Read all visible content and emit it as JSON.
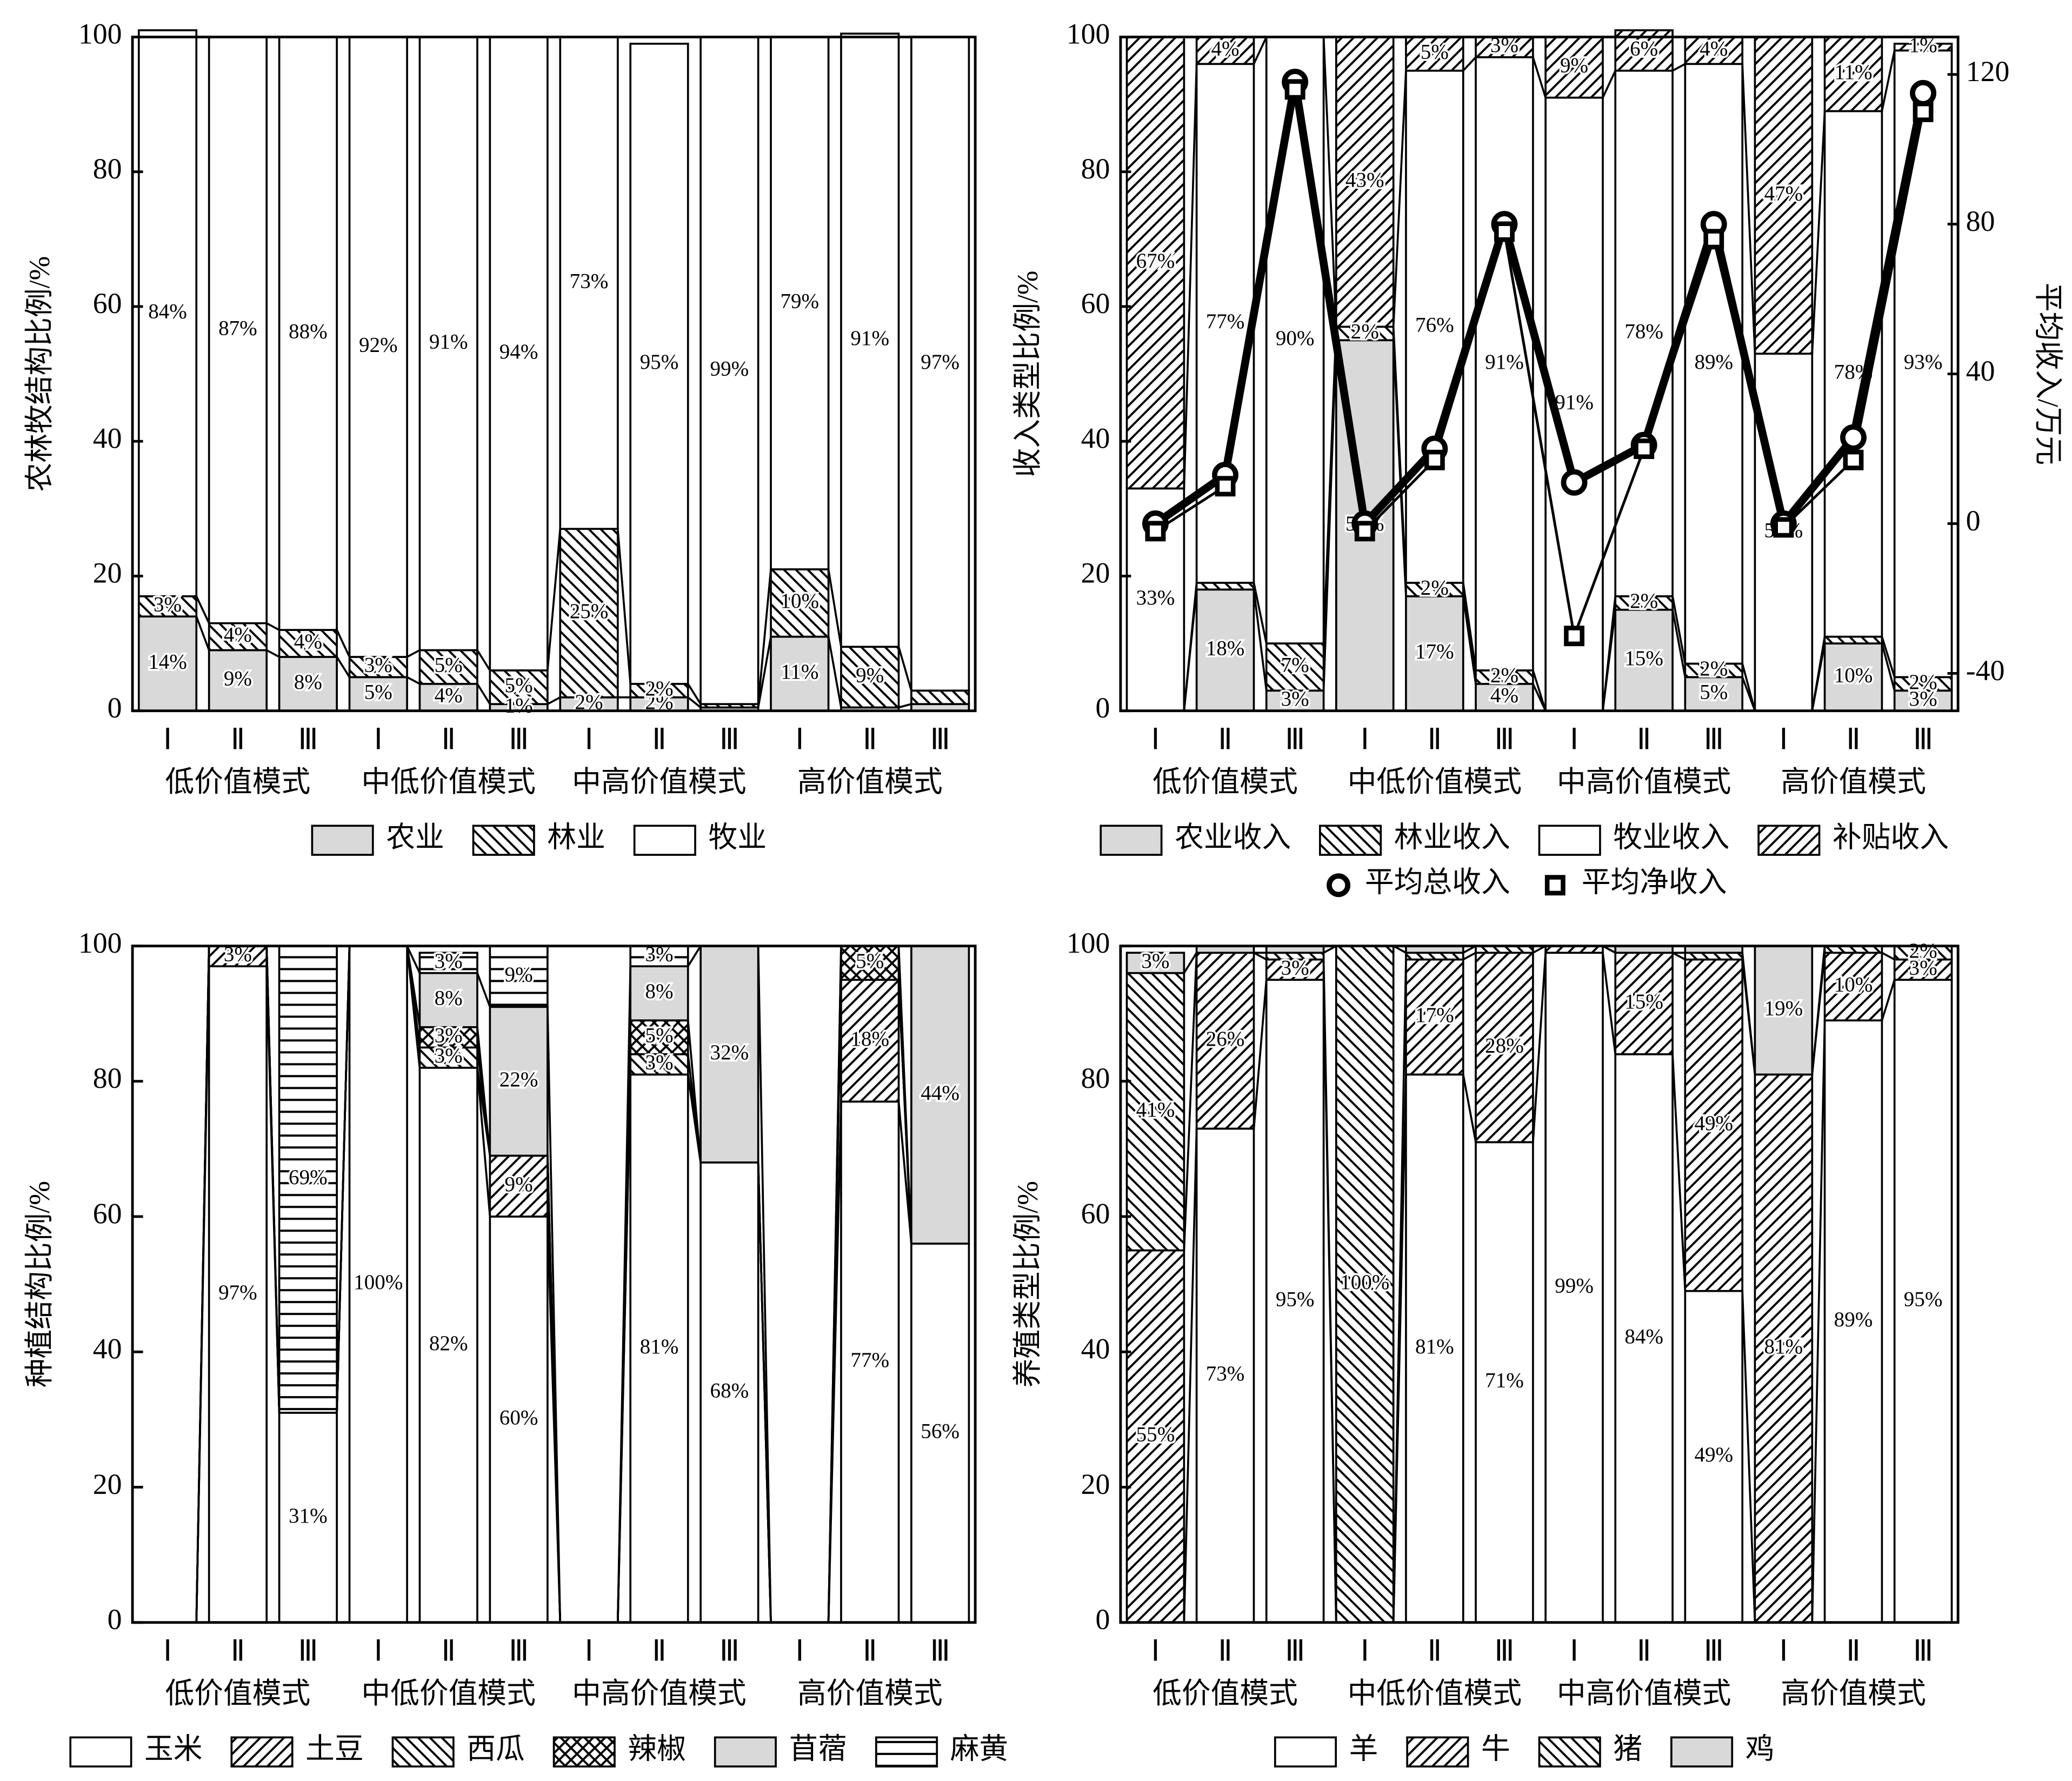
{
  "chart_data": [
    {
      "type": "bar",
      "stacked": true,
      "ylabel": "农林牧结构比例/%",
      "ylim": [
        0,
        100
      ],
      "yticks": [
        0,
        20,
        40,
        60,
        80,
        100
      ],
      "categories": [
        "Ⅰ",
        "Ⅱ",
        "Ⅲ",
        "Ⅰ",
        "Ⅱ",
        "Ⅲ",
        "Ⅰ",
        "Ⅱ",
        "Ⅲ",
        "Ⅰ",
        "Ⅱ",
        "Ⅲ"
      ],
      "groups": [
        "低价值模式",
        "中低价值模式",
        "中高价值模式",
        "高价值模式"
      ],
      "legend": "bottom",
      "series": [
        {
          "name": "农业",
          "color": "#d9d9d9",
          "pattern": "none",
          "values": [
            14,
            9,
            8,
            5,
            4,
            1,
            2,
            2,
            0.5,
            11,
            0.5,
            1
          ],
          "value_labels": [
            "14%",
            "9%",
            "8%",
            "5%",
            "4%",
            "1%",
            "2%",
            "2%",
            null,
            "11%",
            null,
            null
          ]
        },
        {
          "name": "林业",
          "color": "#ffffff",
          "pattern": "backward",
          "values": [
            3,
            4,
            4,
            3,
            5,
            5,
            25,
            2,
            0.5,
            10,
            9,
            2
          ],
          "value_labels": [
            "3%",
            "4%",
            "4%",
            "3%",
            "5%",
            "5%",
            "25%",
            "2%",
            null,
            "10%",
            "9%",
            null
          ]
        },
        {
          "name": "牧业",
          "color": "#ffffff",
          "pattern": "none",
          "values": [
            84,
            87,
            88,
            92,
            91,
            94,
            73,
            95,
            99,
            79,
            91,
            97
          ],
          "value_labels": [
            "84%",
            "87%",
            "88%",
            "92%",
            "91%",
            "94%",
            "73%",
            "95%",
            "99%",
            "79%",
            "91%",
            "97%"
          ]
        }
      ]
    },
    {
      "type": "bar",
      "stacked": true,
      "ylabel": "收入类型比例/%",
      "ylim": [
        0,
        100
      ],
      "yticks": [
        0,
        20,
        40,
        60,
        80,
        100
      ],
      "y2label": "平均收入/万元",
      "y2lim": [
        -50,
        130
      ],
      "y2ticks": [
        -40,
        0,
        40,
        80,
        120
      ],
      "categories": [
        "Ⅰ",
        "Ⅱ",
        "Ⅲ",
        "Ⅰ",
        "Ⅱ",
        "Ⅲ",
        "Ⅰ",
        "Ⅱ",
        "Ⅲ",
        "Ⅰ",
        "Ⅱ",
        "Ⅲ"
      ],
      "groups": [
        "低价值模式",
        "中低价值模式",
        "中高价值模式",
        "高价值模式"
      ],
      "legend": "bottom",
      "series": [
        {
          "name": "农业收入",
          "color": "#d9d9d9",
          "pattern": "none",
          "values": [
            0,
            18,
            3,
            55,
            17,
            4,
            0,
            15,
            5,
            0,
            10,
            3
          ],
          "value_labels": [
            null,
            "18%",
            "3%",
            "55%",
            "17%",
            "4%",
            null,
            "15%",
            "5%",
            null,
            "10%",
            "3%"
          ]
        },
        {
          "name": "林业收入",
          "color": "#ffffff",
          "pattern": "backward",
          "values": [
            0,
            1,
            7,
            2,
            2,
            2,
            0,
            2,
            2,
            0,
            1,
            2
          ],
          "value_labels": [
            null,
            null,
            "7%",
            "2%",
            "2%",
            "2%",
            null,
            "2%",
            "2%",
            null,
            null,
            "2%"
          ]
        },
        {
          "name": "牧业收入",
          "color": "#ffffff",
          "pattern": "none",
          "values": [
            33,
            77,
            90,
            0,
            76,
            91,
            91,
            78,
            89,
            53,
            78,
            93
          ],
          "value_labels": [
            "33%",
            "77%",
            "90%",
            null,
            "76%",
            "91%",
            "91%",
            "78%",
            "89%",
            "53%",
            "78%",
            "93%"
          ]
        },
        {
          "name": "补贴收入",
          "color": "#ffffff",
          "pattern": "forward",
          "values": [
            67,
            4,
            0,
            43,
            5,
            3,
            9,
            6,
            4,
            47,
            11,
            1
          ],
          "value_labels": [
            "67%",
            "4%",
            null,
            "43%",
            "5%",
            "3%",
            "9%",
            "6%",
            "4%",
            "47%",
            "11%",
            "1%"
          ]
        },
        {
          "name": "平均总收入",
          "type": "line",
          "axis": "y2",
          "color": "#000000",
          "marker": "circle",
          "line_width": 6,
          "values": [
            0,
            13,
            118,
            0,
            20,
            80,
            11,
            21,
            80,
            0,
            23,
            115
          ]
        },
        {
          "name": "平均净收入",
          "type": "line",
          "axis": "y2",
          "color": "#000000",
          "marker": "square",
          "line_width": 2,
          "values": [
            -2,
            10,
            116,
            -2,
            17,
            78,
            -30,
            20,
            76,
            -1,
            17,
            110
          ]
        }
      ]
    },
    {
      "type": "bar",
      "stacked": true,
      "ylabel": "种植结构比例/%",
      "ylim": [
        0,
        100
      ],
      "yticks": [
        0,
        20,
        40,
        60,
        80,
        100
      ],
      "categories": [
        "Ⅰ",
        "Ⅱ",
        "Ⅲ",
        "Ⅰ",
        "Ⅱ",
        "Ⅲ",
        "Ⅰ",
        "Ⅱ",
        "Ⅲ",
        "Ⅰ",
        "Ⅱ",
        "Ⅲ"
      ],
      "groups": [
        "低价值模式",
        "中低价值模式",
        "中高价值模式",
        "高价值模式"
      ],
      "legend": "bottom",
      "series": [
        {
          "name": "玉米",
          "color": "#ffffff",
          "pattern": "none",
          "values": [
            0,
            97,
            31,
            100,
            82,
            60,
            0,
            81,
            68,
            0,
            77,
            56
          ],
          "value_labels": [
            null,
            "97%",
            "31%",
            "100%",
            "82%",
            "60%",
            null,
            "81%",
            "68%",
            null,
            "77%",
            "56%"
          ]
        },
        {
          "name": "土豆",
          "color": "#ffffff",
          "pattern": "forward",
          "values": [
            0,
            3,
            0,
            0,
            0,
            9,
            0,
            0,
            0,
            0,
            18,
            0
          ],
          "value_labels": [
            null,
            "3%",
            null,
            null,
            null,
            "9%",
            null,
            null,
            null,
            null,
            "18%",
            null
          ]
        },
        {
          "name": "西瓜",
          "color": "#ffffff",
          "pattern": "backward",
          "values": [
            0,
            0,
            0,
            0,
            3,
            0,
            0,
            3,
            0,
            0,
            0,
            0
          ],
          "value_labels": [
            null,
            null,
            null,
            null,
            "3%",
            null,
            null,
            "3%",
            null,
            null,
            null,
            null
          ]
        },
        {
          "name": "辣椒",
          "color": "#ffffff",
          "pattern": "cross",
          "values": [
            0,
            0,
            0,
            0,
            3,
            0,
            0,
            5,
            0,
            0,
            5,
            0
          ],
          "value_labels": [
            null,
            null,
            null,
            null,
            "3%",
            null,
            null,
            "5%",
            null,
            null,
            "5%",
            null
          ]
        },
        {
          "name": "苜蓿",
          "color": "#d9d9d9",
          "pattern": "none",
          "values": [
            0,
            0,
            0,
            0,
            8,
            22,
            0,
            8,
            32,
            0,
            0,
            44
          ],
          "value_labels": [
            null,
            null,
            null,
            null,
            "8%",
            "22%",
            null,
            "8%",
            "32%",
            null,
            null,
            "44%"
          ]
        },
        {
          "name": "麻黄",
          "color": "#ffffff",
          "pattern": "horizontal",
          "values": [
            0,
            0,
            69,
            0,
            3,
            9,
            0,
            3,
            0,
            0,
            0,
            0
          ],
          "value_labels": [
            null,
            null,
            "69%",
            null,
            "3%",
            "9%",
            null,
            "3%",
            null,
            null,
            null,
            null
          ]
        }
      ]
    },
    {
      "type": "bar",
      "stacked": true,
      "ylabel": "养殖类型比例/%",
      "ylim": [
        0,
        100
      ],
      "yticks": [
        0,
        20,
        40,
        60,
        80,
        100
      ],
      "categories": [
        "Ⅰ",
        "Ⅱ",
        "Ⅲ",
        "Ⅰ",
        "Ⅱ",
        "Ⅲ",
        "Ⅰ",
        "Ⅱ",
        "Ⅲ",
        "Ⅰ",
        "Ⅱ",
        "Ⅲ"
      ],
      "groups": [
        "低价值模式",
        "中低价值模式",
        "中高价值模式",
        "高价值模式"
      ],
      "legend": "bottom",
      "series": [
        {
          "name": "羊",
          "color": "#ffffff",
          "pattern": "none",
          "values": [
            0,
            73,
            95,
            0,
            81,
            71,
            99,
            84,
            49,
            0,
            89,
            95
          ],
          "value_labels": [
            null,
            "73%",
            "95%",
            null,
            "81%",
            "71%",
            "99%",
            "84%",
            "49%",
            null,
            "89%",
            "95%"
          ]
        },
        {
          "name": "牛",
          "color": "#ffffff",
          "pattern": "forward",
          "values": [
            55,
            26,
            3,
            0,
            17,
            28,
            1,
            15,
            49,
            81,
            10,
            3
          ],
          "value_labels": [
            "55%",
            "26%",
            "3%",
            null,
            "17%",
            "28%",
            null,
            "15%",
            "49%",
            "81%",
            "10%",
            "3%"
          ]
        },
        {
          "name": "猪",
          "color": "#ffffff",
          "pattern": "backward",
          "values": [
            41,
            0,
            1,
            100,
            1,
            1,
            0,
            0,
            1,
            0,
            1,
            2
          ],
          "value_labels": [
            "41%",
            null,
            null,
            "100%",
            null,
            null,
            null,
            null,
            null,
            null,
            null,
            "2%"
          ]
        },
        {
          "name": "鸡",
          "color": "#d9d9d9",
          "pattern": "none",
          "values": [
            3,
            1,
            1,
            0,
            1,
            0,
            0,
            1,
            1,
            19,
            0,
            0
          ],
          "value_labels": [
            "3%",
            null,
            null,
            null,
            null,
            null,
            null,
            null,
            null,
            "19%",
            null,
            null
          ]
        }
      ]
    }
  ]
}
